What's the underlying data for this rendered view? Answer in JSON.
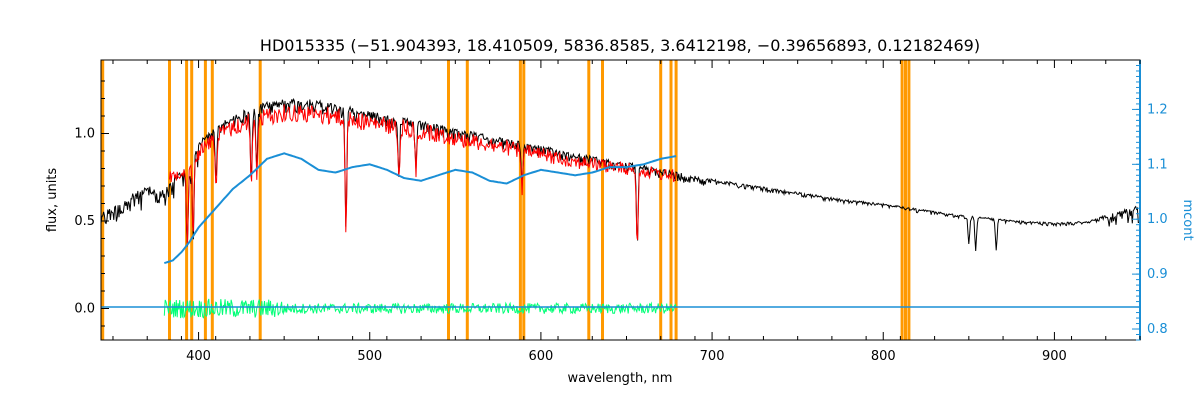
{
  "chart_data": {
    "type": "line",
    "title": "HD015335   (−51.904393, 18.410509, 5836.8585, 3.6412198, −0.39656893, 0.12182469)",
    "xlabel": "wavelength, nm",
    "ylabel": "flux, units",
    "ylabel_right": "mcont",
    "xlim": [
      343,
      950
    ],
    "ylim": [
      -0.18,
      1.42
    ],
    "ylim_right": [
      0.78,
      1.29
    ],
    "x_ticks": [
      400,
      500,
      600,
      700,
      800,
      900
    ],
    "y_ticks": [
      0.0,
      0.5,
      1.0
    ],
    "y_ticks_right": [
      0.8,
      0.9,
      1.0,
      1.1,
      1.2
    ],
    "grid": false,
    "colors": {
      "observed": "#000000",
      "model": "#ff0000",
      "residual": "#00ff77",
      "continuum": "#1a8fd6",
      "masks": "#ff9900"
    },
    "mask_lines": [
      344,
      383,
      393,
      396,
      404,
      408,
      436,
      546,
      557,
      588,
      590,
      628,
      636,
      670,
      676,
      679,
      811,
      813,
      815
    ],
    "series": [
      {
        "role": "observed",
        "x": [
          343,
          360,
          370,
          380,
          385,
          390,
          395,
          400,
          410,
          420,
          430,
          440,
          450,
          460,
          470,
          480,
          490,
          500,
          520,
          540,
          560,
          580,
          600,
          620,
          640,
          660,
          680,
          700,
          720,
          740,
          760,
          780,
          800,
          820,
          840,
          860,
          880,
          900,
          920,
          935,
          945,
          950
        ],
        "y": [
          0.55,
          0.65,
          0.7,
          0.68,
          0.75,
          0.8,
          0.85,
          0.95,
          1.05,
          1.1,
          1.15,
          1.18,
          1.2,
          1.2,
          1.19,
          1.17,
          1.15,
          1.13,
          1.09,
          1.05,
          1.01,
          0.97,
          0.93,
          0.89,
          0.85,
          0.82,
          0.78,
          0.74,
          0.71,
          0.68,
          0.65,
          0.62,
          0.6,
          0.57,
          0.54,
          0.52,
          0.5,
          0.49,
          0.5,
          0.55,
          0.58,
          0.6
        ]
      },
      {
        "role": "model",
        "x": [
          383,
          390,
          395,
          400,
          410,
          420,
          430,
          440,
          450,
          460,
          470,
          480,
          490,
          500,
          520,
          540,
          560,
          580,
          600,
          620,
          640,
          660,
          679
        ],
        "y": [
          0.78,
          0.82,
          0.86,
          0.93,
          1.03,
          1.08,
          1.12,
          1.15,
          1.17,
          1.17,
          1.16,
          1.15,
          1.13,
          1.11,
          1.08,
          1.04,
          1.0,
          0.96,
          0.92,
          0.88,
          0.85,
          0.82,
          0.79
        ]
      },
      {
        "role": "residual",
        "x": [
          380,
          679
        ],
        "y": [
          0.0,
          0.0
        ]
      },
      {
        "role": "continuum",
        "axis": "right",
        "x": [
          380,
          385,
          390,
          395,
          400,
          410,
          420,
          430,
          440,
          450,
          460,
          470,
          480,
          490,
          500,
          510,
          520,
          530,
          540,
          550,
          560,
          570,
          580,
          590,
          600,
          610,
          620,
          630,
          640,
          650,
          660,
          670,
          679
        ],
        "y": [
          0.92,
          0.925,
          0.94,
          0.96,
          0.985,
          1.02,
          1.055,
          1.08,
          1.11,
          1.12,
          1.11,
          1.09,
          1.085,
          1.095,
          1.1,
          1.09,
          1.075,
          1.07,
          1.08,
          1.09,
          1.085,
          1.07,
          1.065,
          1.08,
          1.09,
          1.085,
          1.08,
          1.085,
          1.095,
          1.095,
          1.1,
          1.11,
          1.115
        ]
      },
      {
        "role": "error-baseline",
        "axis": "right",
        "x": [
          343,
          950
        ],
        "y": [
          0.84,
          0.84
        ]
      }
    ]
  }
}
